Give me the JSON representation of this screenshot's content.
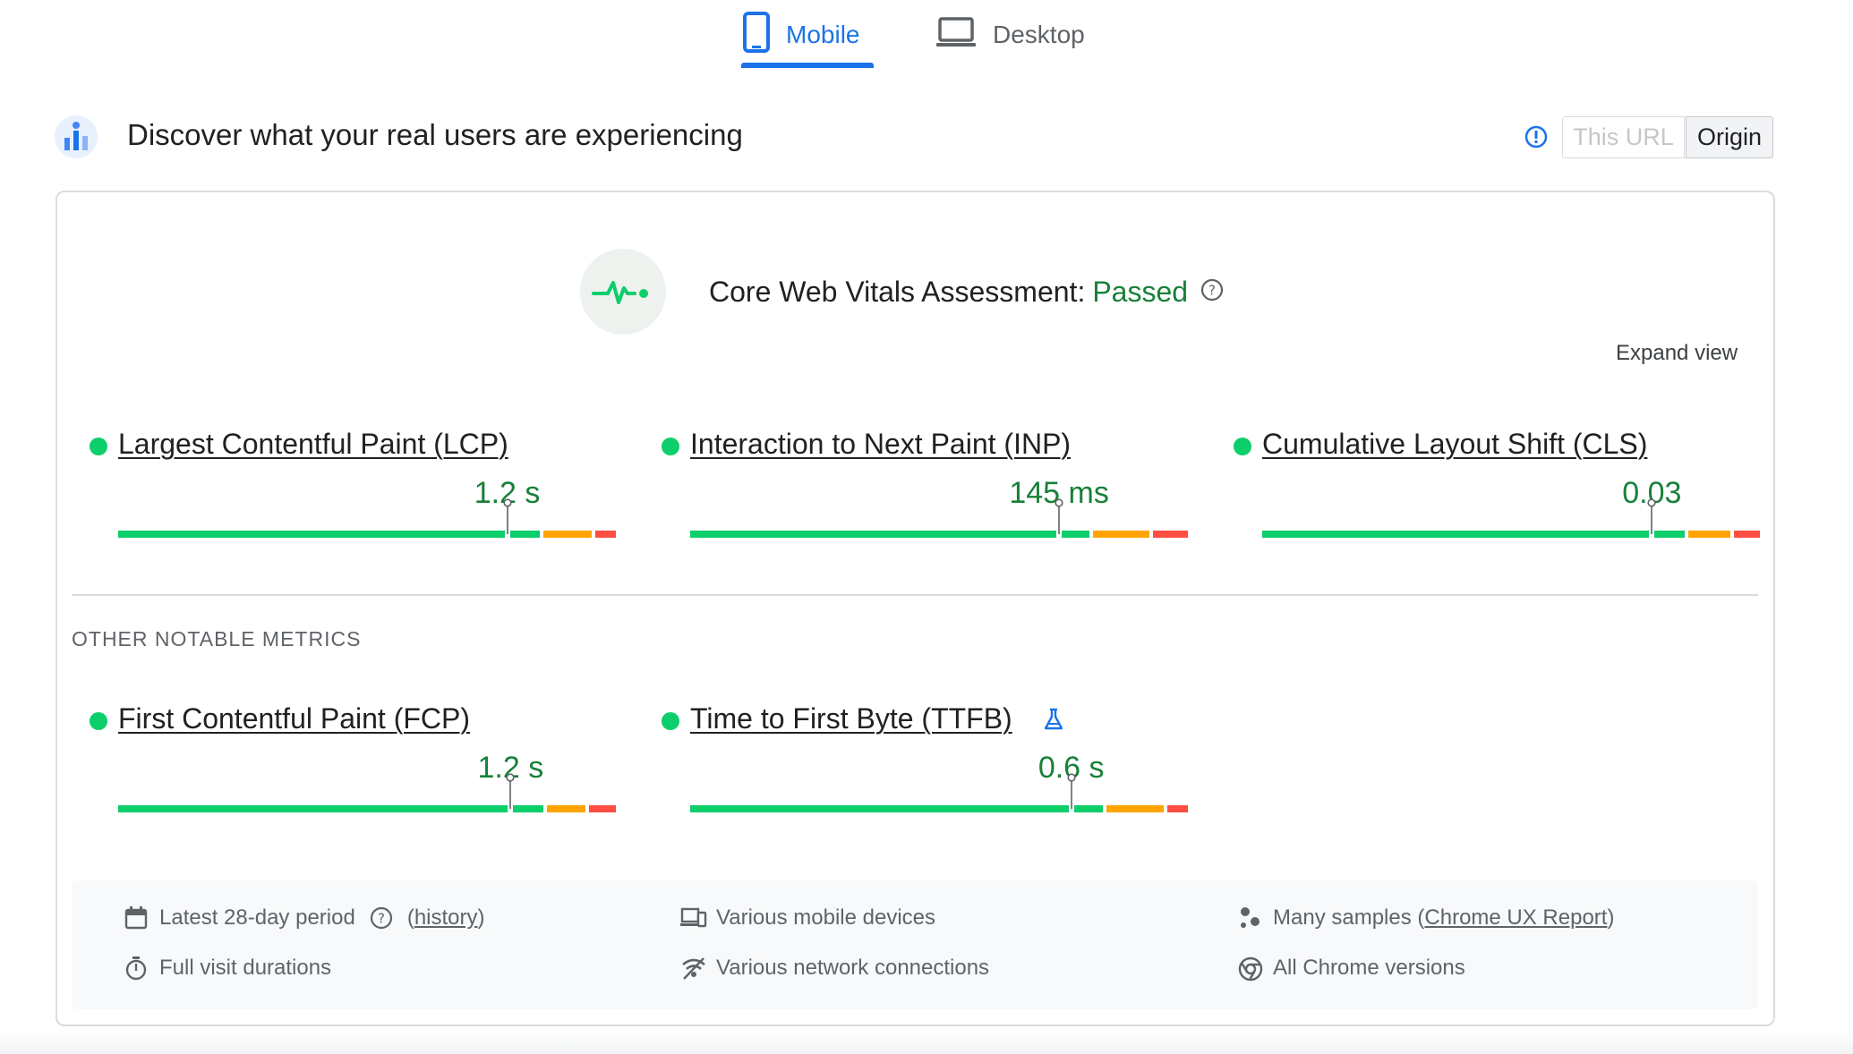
{
  "tabs": {
    "mobile_label": "Mobile",
    "desktop_label": "Desktop",
    "active": "Mobile"
  },
  "header": {
    "title": "Discover what your real users are experiencing",
    "scope_toggle": {
      "this_url_label": "This URL",
      "origin_label": "Origin",
      "selected": "Origin"
    }
  },
  "assessment": {
    "title": "Core Web Vitals Assessment:",
    "status": "Passed",
    "expand_label": "Expand view"
  },
  "core_metrics": [
    {
      "name": "Largest Contentful Paint (LCP)",
      "value": "1.2 s",
      "status": "good",
      "distribution": {
        "good": 0.82,
        "needs_improvement": 0.1,
        "poor": 0.04
      }
    },
    {
      "name": "Interaction to Next Paint (INP)",
      "value": "145 ms",
      "status": "good",
      "distribution": {
        "good": 0.81,
        "needs_improvement": 0.12,
        "poor": 0.07
      }
    },
    {
      "name": "Cumulative Layout Shift (CLS)",
      "value": "0.03",
      "status": "good",
      "distribution": {
        "good": 0.83,
        "needs_improvement": 0.09,
        "poor": 0.05
      }
    }
  ],
  "other_section_label": "OTHER NOTABLE METRICS",
  "other_metrics": [
    {
      "name": "First Contentful Paint (FCP)",
      "value": "1.2 s",
      "status": "good",
      "distribution": {
        "good": 0.81,
        "needs_improvement": 0.08,
        "poor": 0.05
      }
    },
    {
      "name": "Time to First Byte (TTFB)",
      "value": "0.6 s",
      "status": "good",
      "experimental": true,
      "distribution": {
        "good": 0.82,
        "needs_improvement": 0.12,
        "poor": 0.04
      }
    }
  ],
  "footer": {
    "period": "Latest 28-day period",
    "history_link": "history",
    "devices": "Various mobile devices",
    "samples_prefix": "Many samples (",
    "samples_link": "Chrome UX Report",
    "samples_suffix": ")",
    "durations": "Full visit durations",
    "network": "Various network connections",
    "chrome": "All Chrome versions"
  },
  "colors": {
    "accent": "#1a73e8",
    "good": "#0cce6b",
    "needs_improvement": "#ffa400",
    "poor": "#ff4e42",
    "passed_text": "#188038"
  },
  "icons": {
    "mobile_tab": "phone-icon",
    "desktop_tab": "laptop-icon",
    "assessment": "pulse-icon",
    "ttfb_badge": "beaker-icon"
  }
}
